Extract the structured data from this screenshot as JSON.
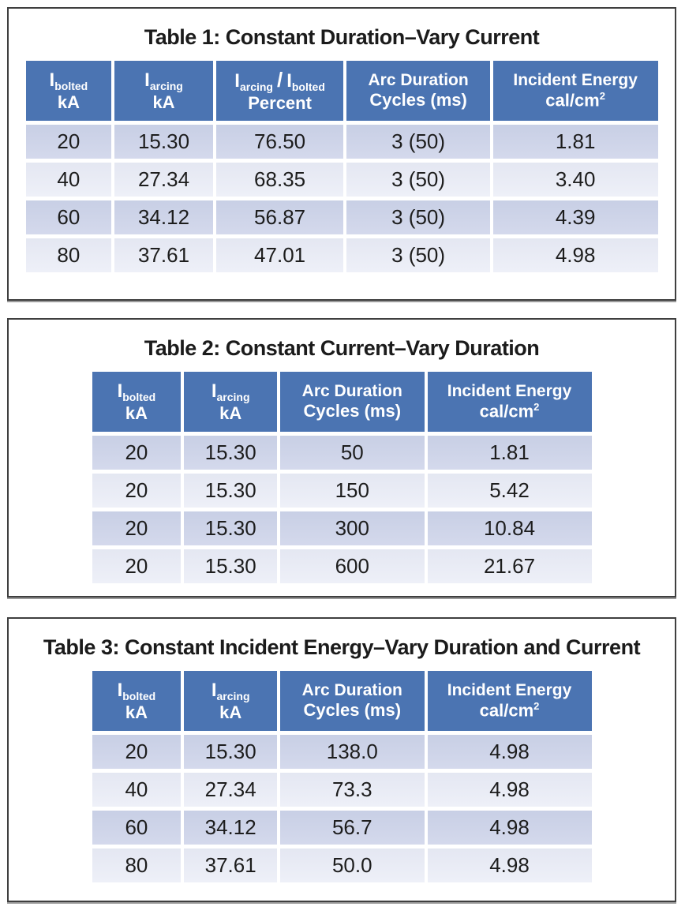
{
  "colors": {
    "header_bg": "#4B74B2",
    "band_dark": "#CDD3E8",
    "band_light": "#E9EBF6",
    "frame_border": "#3F3F3F",
    "title_text": "#1B1B1B",
    "header_text": "#FFFFFF",
    "cell_text": "#1D1D1D"
  },
  "tables": [
    {
      "title": "Table 1: Constant Duration–Vary Current",
      "headers": {
        "c1": {
          "symbol": "I",
          "sub": "bolted",
          "unit": "kA"
        },
        "c2": {
          "symbol": "I",
          "sub": "arcing",
          "unit": "kA"
        },
        "c3": {
          "sym1": "I",
          "sub1": "arcing",
          "sep": "/",
          "sym2": "I",
          "sub2": "bolted",
          "line2": "Percent"
        },
        "c4": {
          "line1": "Arc Duration",
          "line2": "Cycles (ms)"
        },
        "c5": {
          "line1": "Incident Energy",
          "unit_base": "cal/cm",
          "unit_sup": "2"
        }
      },
      "rows": [
        [
          "20",
          "15.30",
          "76.50",
          "3 (50)",
          "1.81"
        ],
        [
          "40",
          "27.34",
          "68.35",
          "3 (50)",
          "3.40"
        ],
        [
          "60",
          "34.12",
          "56.87",
          "3 (50)",
          "4.39"
        ],
        [
          "80",
          "37.61",
          "47.01",
          "3 (50)",
          "4.98"
        ]
      ]
    },
    {
      "title": "Table 2: Constant Current–Vary Duration",
      "headers": {
        "c1": {
          "symbol": "I",
          "sub": "bolted",
          "unit": "kA"
        },
        "c2": {
          "symbol": "I",
          "sub": "arcing",
          "unit": "kA"
        },
        "c3": {
          "line1": "Arc Duration",
          "line2": "Cycles (ms)"
        },
        "c4": {
          "line1": "Incident Energy",
          "unit_base": "cal/cm",
          "unit_sup": "2"
        }
      },
      "rows": [
        [
          "20",
          "15.30",
          "50",
          "1.81"
        ],
        [
          "20",
          "15.30",
          "150",
          "5.42"
        ],
        [
          "20",
          "15.30",
          "300",
          "10.84"
        ],
        [
          "20",
          "15.30",
          "600",
          "21.67"
        ]
      ]
    },
    {
      "title": "Table 3: Constant Incident Energy–Vary Duration and Current",
      "headers": {
        "c1": {
          "symbol": "I",
          "sub": "bolted",
          "unit": "kA"
        },
        "c2": {
          "symbol": "I",
          "sub": "arcing",
          "unit": "kA"
        },
        "c3": {
          "line1": "Arc Duration",
          "line2": "Cycles (ms)"
        },
        "c4": {
          "line1": "Incident Energy",
          "unit_base": "cal/cm",
          "unit_sup": "2"
        }
      },
      "rows": [
        [
          "20",
          "15.30",
          "138.0",
          "4.98"
        ],
        [
          "40",
          "27.34",
          "73.3",
          "4.98"
        ],
        [
          "60",
          "34.12",
          "56.7",
          "4.98"
        ],
        [
          "80",
          "37.61",
          "50.0",
          "4.98"
        ]
      ]
    }
  ]
}
